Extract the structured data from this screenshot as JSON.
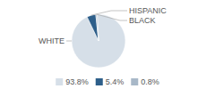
{
  "chart_data": {
    "type": "pie",
    "categories": [
      "WHITE",
      "HISPANIC",
      "BLACK"
    ],
    "values": [
      93.8,
      5.4,
      0.8
    ],
    "value_labels": [
      "93.8%",
      "5.4%",
      "0.8%"
    ],
    "colors": [
      "#d6dfe8",
      "#2e5f8a",
      "#a8b8c8"
    ],
    "legend": "bottom"
  }
}
